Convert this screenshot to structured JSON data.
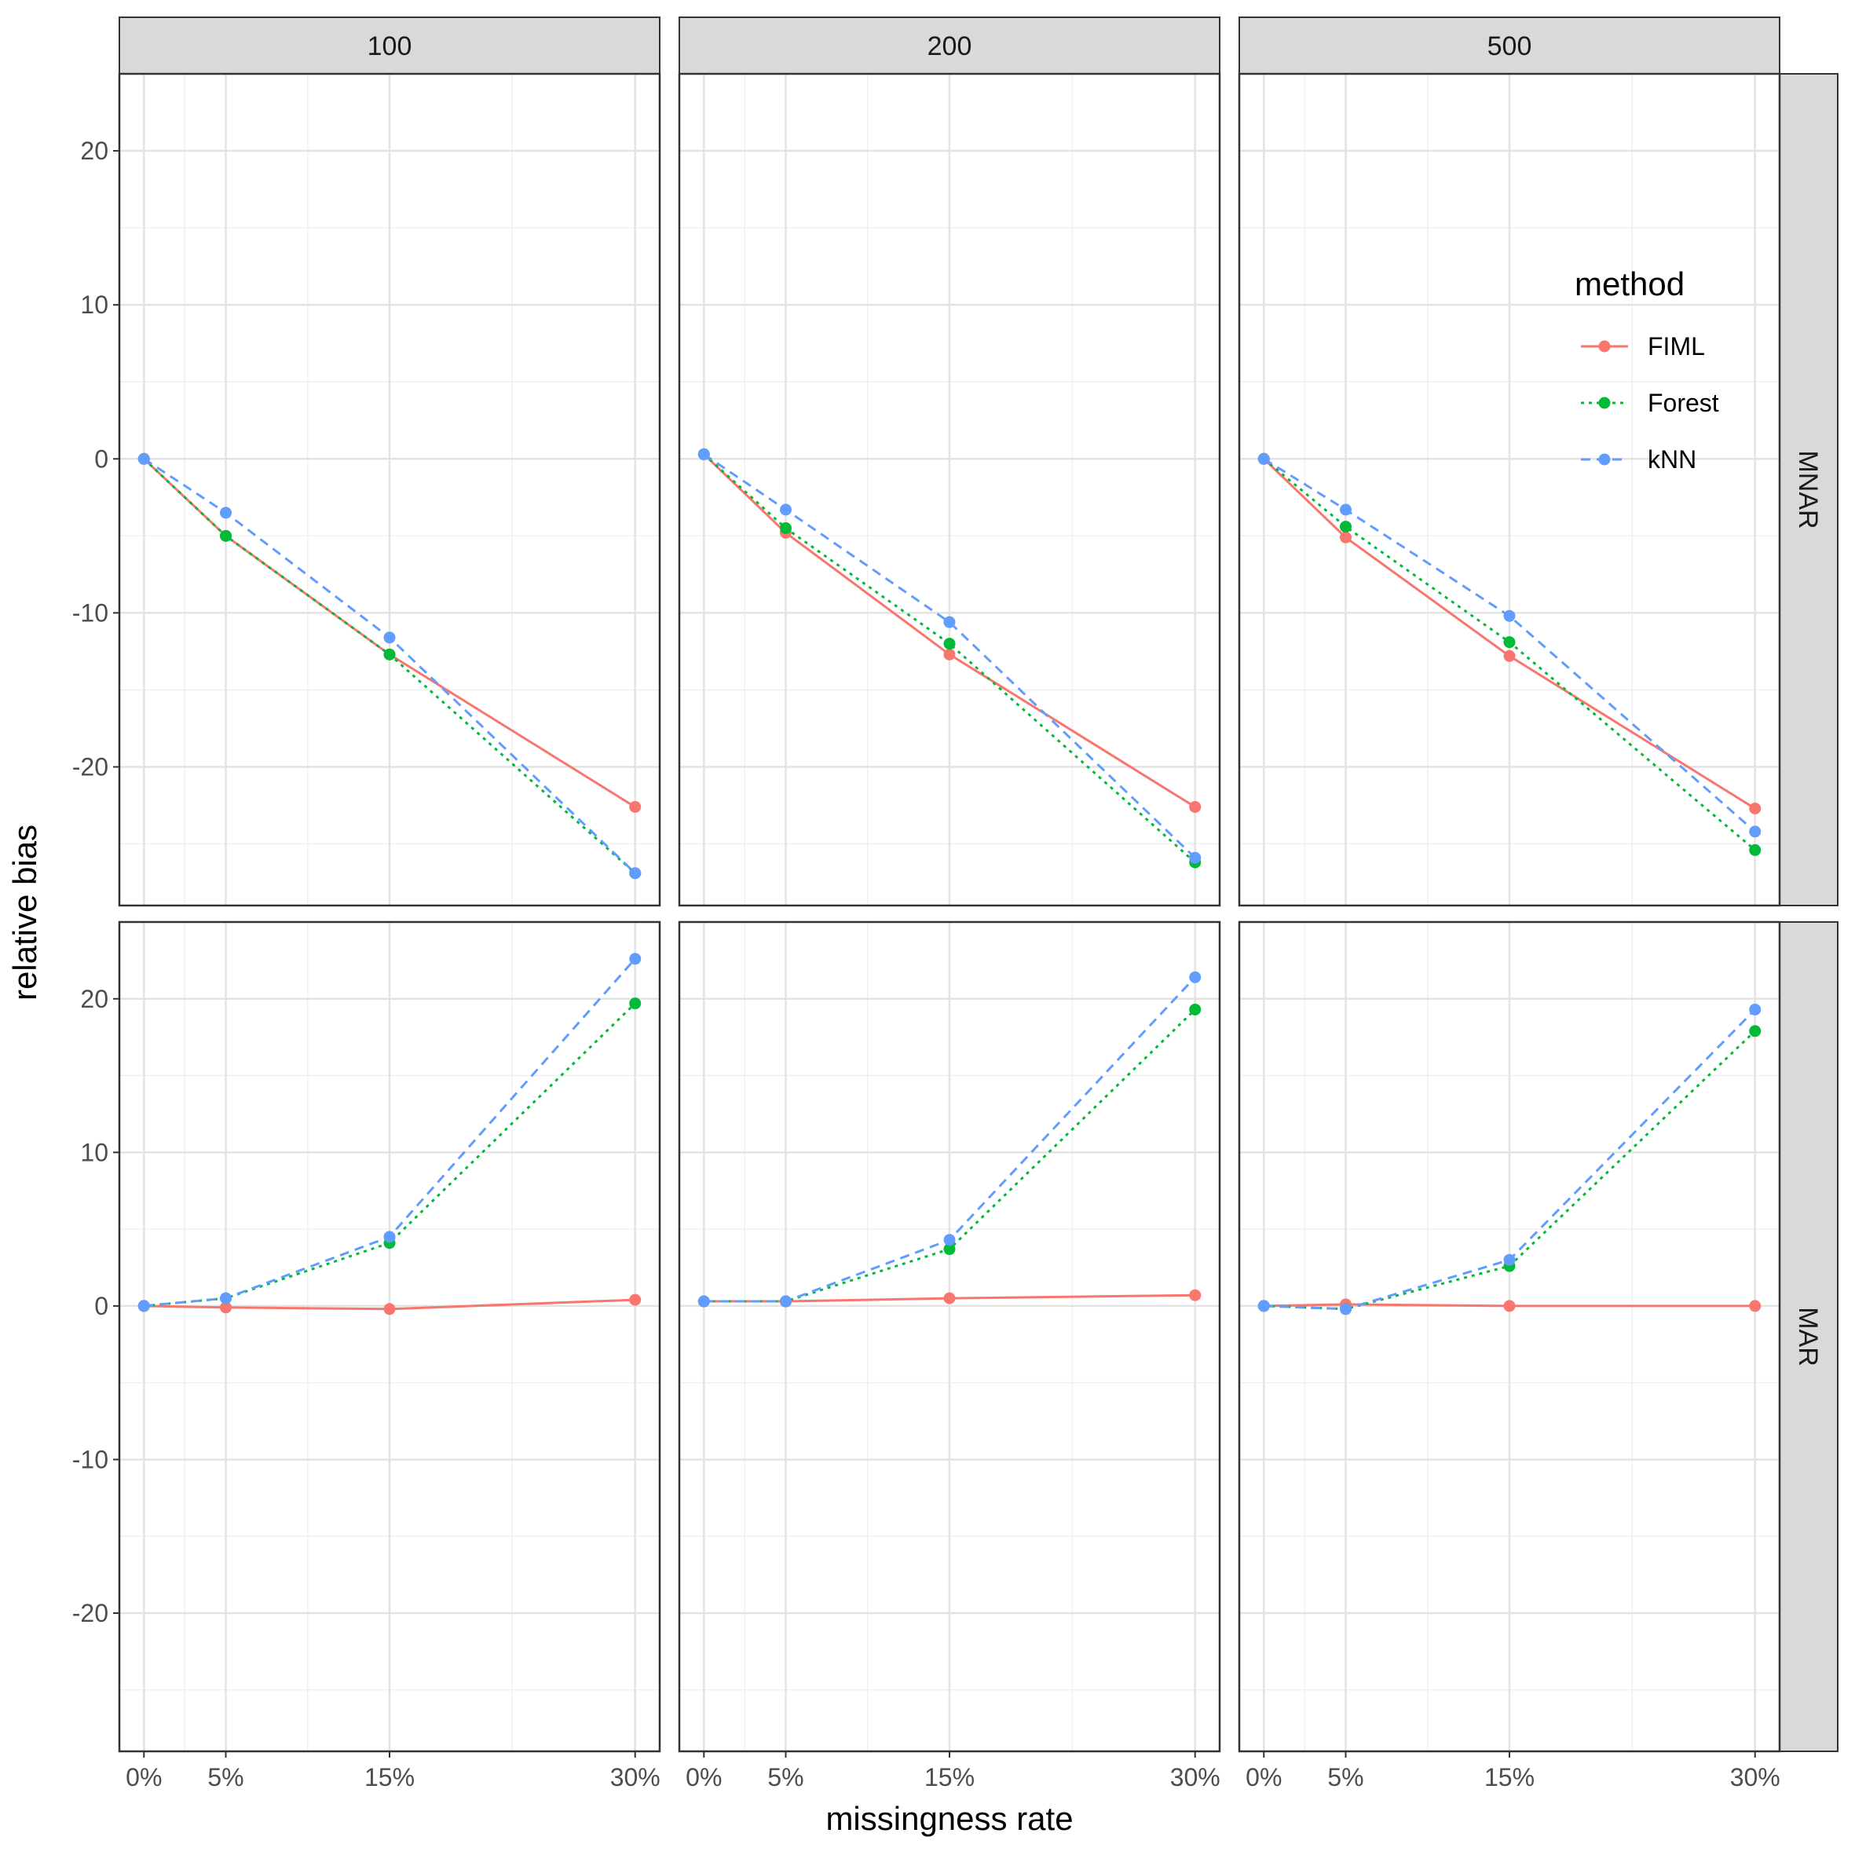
{
  "chart_data": {
    "type": "line",
    "xlabel": "missingness rate",
    "ylabel": "relative bias",
    "x": [
      0,
      5,
      15,
      30
    ],
    "x_tick_labels": [
      "0%",
      "5%",
      "15%",
      "30%"
    ],
    "xlim": [
      -1.5,
      31.5
    ],
    "ylim": [
      -29,
      25
    ],
    "y_ticks": [
      20,
      10,
      0,
      -10,
      -20
    ],
    "y_tick_labels": [
      "20",
      "10",
      "0",
      "-10",
      "-20"
    ],
    "grid": true,
    "legend": {
      "title": "method",
      "placement": "inside top-right of upper-right panel",
      "entries": [
        "FIML",
        "Forest",
        "kNN"
      ]
    },
    "column_facets": [
      "100",
      "200",
      "500"
    ],
    "row_facets": [
      "MNAR",
      "MAR"
    ],
    "series_styles": [
      {
        "name": "FIML",
        "color": "#F8766D",
        "dash": "solid"
      },
      {
        "name": "Forest",
        "color": "#00BA38",
        "dash": "dotted"
      },
      {
        "name": "kNN",
        "color": "#619CFF",
        "dash": "dashed"
      }
    ],
    "panels": [
      {
        "row": "MNAR",
        "col": "100",
        "series": [
          {
            "name": "FIML",
            "values": [
              0,
              -5.0,
              -12.7,
              -22.6
            ]
          },
          {
            "name": "Forest",
            "values": [
              0,
              -5.0,
              -12.7,
              -26.9
            ]
          },
          {
            "name": "kNN",
            "values": [
              0,
              -3.5,
              -11.6,
              -26.9
            ]
          }
        ]
      },
      {
        "row": "MNAR",
        "col": "200",
        "series": [
          {
            "name": "FIML",
            "values": [
              0.3,
              -4.8,
              -12.7,
              -22.6
            ]
          },
          {
            "name": "Forest",
            "values": [
              0.3,
              -4.5,
              -12.0,
              -26.2
            ]
          },
          {
            "name": "kNN",
            "values": [
              0.3,
              -3.3,
              -10.6,
              -25.9
            ]
          }
        ]
      },
      {
        "row": "MNAR",
        "col": "500",
        "series": [
          {
            "name": "FIML",
            "values": [
              0,
              -5.1,
              -12.8,
              -22.7
            ]
          },
          {
            "name": "Forest",
            "values": [
              0,
              -4.4,
              -11.9,
              -25.4
            ]
          },
          {
            "name": "kNN",
            "values": [
              0,
              -3.3,
              -10.2,
              -24.2
            ]
          }
        ]
      },
      {
        "row": "MAR",
        "col": "100",
        "series": [
          {
            "name": "FIML",
            "values": [
              0,
              -0.1,
              -0.2,
              0.4
            ]
          },
          {
            "name": "Forest",
            "values": [
              0,
              0.5,
              4.1,
              19.7
            ]
          },
          {
            "name": "kNN",
            "values": [
              0,
              0.5,
              4.5,
              22.6
            ]
          }
        ]
      },
      {
        "row": "MAR",
        "col": "200",
        "series": [
          {
            "name": "FIML",
            "values": [
              0.3,
              0.3,
              0.5,
              0.7
            ]
          },
          {
            "name": "Forest",
            "values": [
              0.3,
              0.3,
              3.7,
              19.3
            ]
          },
          {
            "name": "kNN",
            "values": [
              0.3,
              0.3,
              4.3,
              21.4
            ]
          }
        ]
      },
      {
        "row": "MAR",
        "col": "500",
        "series": [
          {
            "name": "FIML",
            "values": [
              0,
              0.1,
              0,
              0
            ]
          },
          {
            "name": "Forest",
            "values": [
              0,
              -0.2,
              2.6,
              17.9
            ]
          },
          {
            "name": "kNN",
            "values": [
              0,
              -0.2,
              3.0,
              19.3
            ]
          }
        ]
      }
    ]
  }
}
